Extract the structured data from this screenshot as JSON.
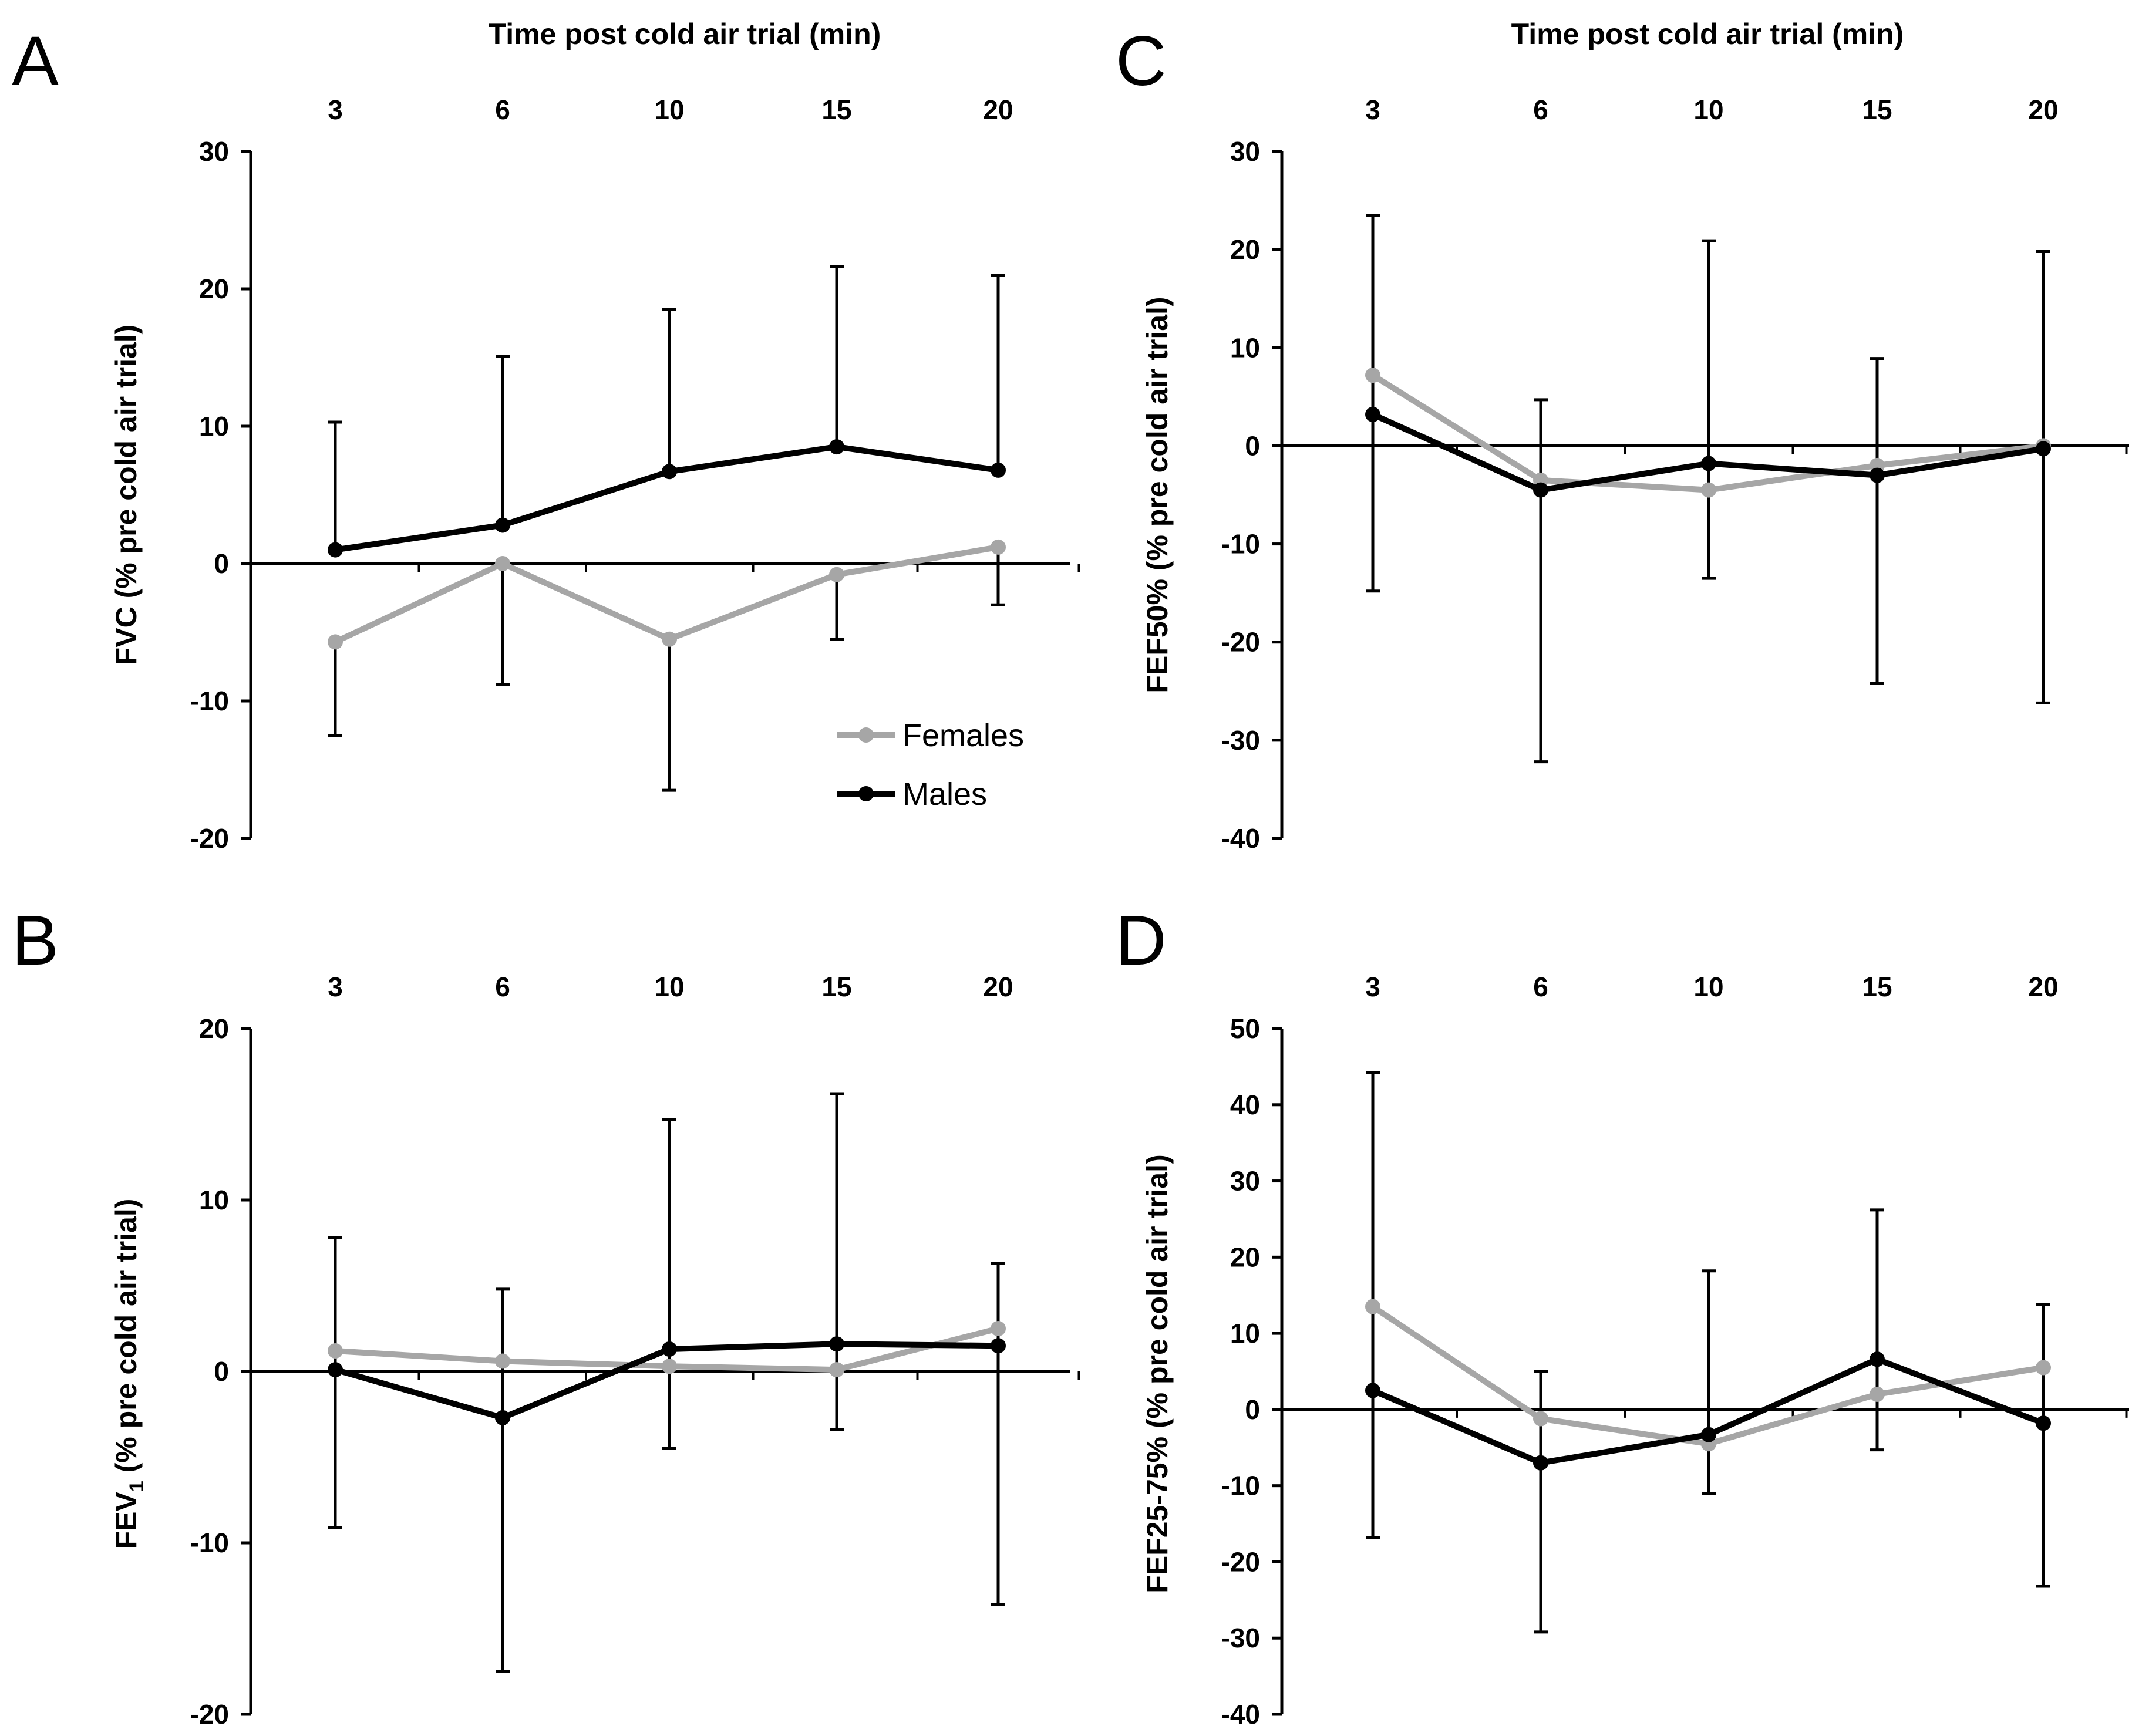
{
  "chart_data": [
    {
      "type": "line",
      "panel": "A",
      "title": "Time post cold air trial (min)",
      "xlabel": "Time post cold air trial (min)",
      "ylabel": "FVC (% pre cold air trial)",
      "ylabel_sub": "",
      "ylabel_rest": "",
      "categories": [
        "3",
        "6",
        "10",
        "15",
        "20"
      ],
      "ylim": [
        -20,
        30
      ],
      "yticks": [
        -20,
        -10,
        0,
        10,
        20,
        30
      ],
      "series": [
        {
          "name": "Females",
          "color": "#a6a6a6",
          "values": [
            -5.7,
            0.0,
            -5.5,
            -0.8,
            1.2
          ],
          "err_low": [
            -12.5,
            -8.8,
            -16.5,
            -5.5,
            -3.0
          ],
          "err_high": null
        },
        {
          "name": "Males",
          "color": "#000000",
          "values": [
            1.0,
            2.8,
            6.7,
            8.5,
            6.8
          ],
          "err_low": null,
          "err_high": [
            10.3,
            15.1,
            18.5,
            21.6,
            21.0
          ]
        }
      ],
      "legend": {
        "position": "bottom-right",
        "entries": [
          "Females",
          "Males"
        ]
      }
    },
    {
      "type": "line",
      "panel": "B",
      "title": "",
      "xlabel": "",
      "ylabel": "FEV",
      "ylabel_sub": "1",
      "ylabel_rest": " (% pre cold air trial)",
      "categories": [
        "3",
        "6",
        "10",
        "15",
        "20"
      ],
      "ylim": [
        -20,
        20
      ],
      "yticks": [
        -20,
        -10,
        0,
        10,
        20
      ],
      "series": [
        {
          "name": "Females",
          "color": "#a6a6a6",
          "values": [
            1.2,
            0.6,
            0.3,
            0.1,
            2.5
          ],
          "err_low": null,
          "err_high": null
        },
        {
          "name": "Males",
          "color": "#000000",
          "values": [
            0.1,
            -2.7,
            1.3,
            1.6,
            1.5
          ],
          "err_low": [
            -9.1,
            -17.5,
            -4.5,
            -3.4,
            -13.6
          ],
          "err_high": [
            7.8,
            4.8,
            14.7,
            16.2,
            6.3
          ]
        }
      ]
    },
    {
      "type": "line",
      "panel": "C",
      "title": "Time post cold air trial (min)",
      "xlabel": "Time post cold air trial (min)",
      "ylabel": "FEF50% (% pre cold air trial)",
      "ylabel_sub": "",
      "ylabel_rest": "",
      "categories": [
        "3",
        "6",
        "10",
        "15",
        "20"
      ],
      "ylim": [
        -40,
        30
      ],
      "yticks": [
        -40,
        -30,
        -20,
        -10,
        0,
        10,
        20,
        30
      ],
      "series": [
        {
          "name": "Females",
          "color": "#a6a6a6",
          "values": [
            7.2,
            -3.5,
            -4.5,
            -2.0,
            0.0
          ],
          "err_low": null,
          "err_high": null
        },
        {
          "name": "Males",
          "color": "#000000",
          "values": [
            3.2,
            -4.5,
            -1.8,
            -3.0,
            -0.3
          ],
          "err_low": [
            -14.8,
            -32.2,
            -13.5,
            -24.2,
            -26.2
          ],
          "err_high": [
            23.5,
            4.7,
            20.9,
            8.9,
            19.8
          ]
        }
      ]
    },
    {
      "type": "line",
      "panel": "D",
      "title": "",
      "xlabel": "",
      "ylabel": "FEF25-75% (% pre cold air trial)",
      "ylabel_sub": "",
      "ylabel_rest": "",
      "categories": [
        "3",
        "6",
        "10",
        "15",
        "20"
      ],
      "ylim": [
        -40,
        50
      ],
      "yticks": [
        -40,
        -30,
        -20,
        -10,
        0,
        10,
        20,
        30,
        40,
        50
      ],
      "series": [
        {
          "name": "Females",
          "color": "#a6a6a6",
          "values": [
            13.5,
            -1.2,
            -4.5,
            2.0,
            5.5
          ],
          "err_low": null,
          "err_high": null
        },
        {
          "name": "Males",
          "color": "#000000",
          "values": [
            2.5,
            -7.0,
            -3.3,
            6.6,
            -1.8
          ],
          "err_low": [
            -16.8,
            -29.2,
            -11.0,
            -5.3,
            -23.2
          ],
          "err_high": [
            44.2,
            5.0,
            18.2,
            26.2,
            13.8
          ]
        }
      ]
    }
  ]
}
